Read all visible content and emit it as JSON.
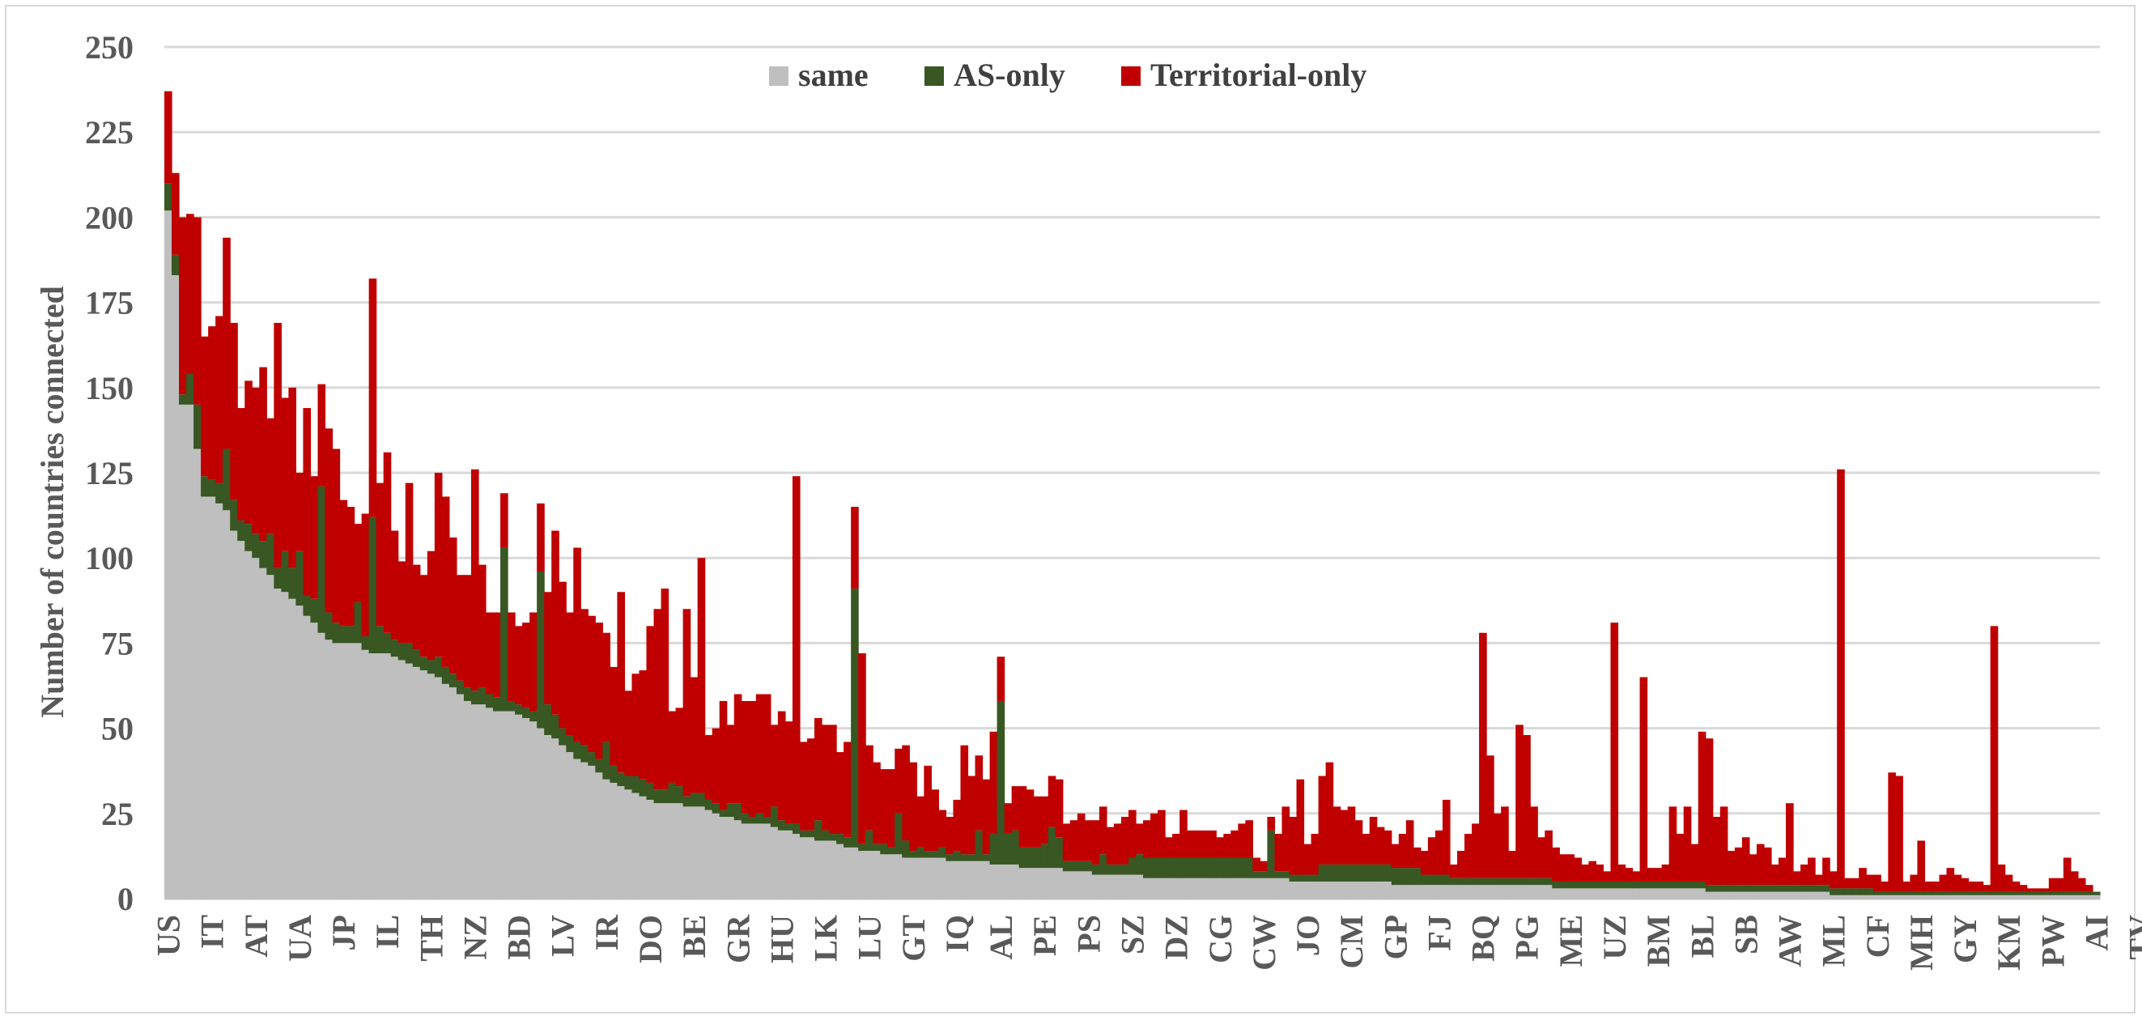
{
  "chart_data": {
    "type": "bar",
    "stacked": true,
    "title": "",
    "xlabel": "",
    "ylabel": "Number of countries connected",
    "ylim": [
      0,
      250
    ],
    "yticks": [
      0,
      25,
      50,
      75,
      100,
      125,
      150,
      175,
      200,
      225,
      250
    ],
    "grid": true,
    "legend_position": "top-center",
    "x_tick_labels": [
      "US",
      "IT",
      "AT",
      "UA",
      "JP",
      "IL",
      "TH",
      "NZ",
      "BD",
      "LV",
      "IR",
      "DO",
      "BE",
      "GR",
      "HU",
      "LK",
      "LU",
      "GT",
      "IQ",
      "AL",
      "PE",
      "PS",
      "SZ",
      "DZ",
      "CG",
      "CW",
      "JO",
      "CM",
      "GP",
      "FJ",
      "BQ",
      "PG",
      "ME",
      "UZ",
      "BM",
      "BL",
      "SB",
      "AW",
      "ML",
      "CF",
      "MH",
      "GY",
      "KM",
      "PW",
      "AI",
      "TV"
    ],
    "series": [
      {
        "name": "same",
        "color": "#bfbfbf",
        "values": [
          202,
          183,
          145,
          145,
          132,
          118,
          118,
          116,
          114,
          108,
          105,
          102,
          100,
          97,
          95,
          91,
          90,
          88,
          86,
          83,
          81,
          78,
          76,
          75,
          75,
          75,
          75,
          73,
          72,
          72,
          72,
          71,
          70,
          69,
          68,
          67,
          66,
          65,
          63,
          62,
          60,
          58,
          57,
          57,
          56,
          55,
          55,
          55,
          54,
          53,
          52,
          50,
          48,
          47,
          45,
          43,
          41,
          40,
          39,
          37,
          35,
          34,
          33,
          32,
          31,
          30,
          29,
          28,
          28,
          28,
          28,
          27,
          27,
          27,
          26,
          25,
          24,
          24,
          23,
          22,
          22,
          22,
          22,
          21,
          20,
          20,
          19,
          18,
          18,
          17,
          17,
          17,
          16,
          15,
          15,
          14,
          14,
          14,
          13,
          13,
          13,
          12,
          12,
          12,
          12,
          12,
          12,
          11,
          11,
          11,
          11,
          11,
          11,
          10,
          10,
          10,
          10,
          9,
          9,
          9,
          9,
          9,
          9,
          8,
          8,
          8,
          8,
          7,
          7,
          7,
          7,
          7,
          7,
          7,
          6,
          6,
          6,
          6,
          6,
          6,
          6,
          6,
          6,
          6,
          6,
          6,
          6,
          6,
          6,
          6,
          6,
          6,
          6,
          6,
          5,
          5,
          5,
          5,
          5,
          5,
          5,
          5,
          5,
          5,
          5,
          5,
          5,
          5,
          4,
          4,
          4,
          4,
          4,
          4,
          4,
          4,
          4,
          4,
          4,
          4,
          4,
          4,
          4,
          4,
          4,
          4,
          4,
          4,
          4,
          4,
          3,
          3,
          3,
          3,
          3,
          3,
          3,
          3,
          3,
          3,
          3,
          3,
          3,
          3,
          3,
          3,
          3,
          3,
          3,
          3,
          3,
          2,
          2,
          2,
          2,
          2,
          2,
          2,
          2,
          2,
          2,
          2,
          2,
          2,
          2,
          2,
          2,
          2,
          1,
          1,
          1,
          1,
          1,
          1,
          1,
          1,
          1,
          1,
          1,
          1,
          1,
          1,
          1,
          1,
          1,
          1,
          1,
          1,
          1,
          1,
          1,
          1,
          1,
          1,
          1,
          1,
          1,
          1,
          1,
          1,
          1,
          1,
          1,
          1,
          1
        ]
      },
      {
        "name": "AS-only",
        "color": "#385723",
        "values": [
          8,
          6,
          3,
          9,
          13,
          6,
          5,
          6,
          18,
          9,
          6,
          8,
          7,
          8,
          12,
          6,
          12,
          9,
          16,
          6,
          7,
          43,
          8,
          6,
          5,
          5,
          12,
          4,
          40,
          8,
          6,
          5,
          5,
          6,
          5,
          4,
          4,
          6,
          5,
          4,
          4,
          4,
          4,
          5,
          4,
          4,
          48,
          3,
          3,
          3,
          3,
          46,
          9,
          7,
          5,
          5,
          5,
          5,
          4,
          4,
          11,
          5,
          4,
          4,
          5,
          5,
          5,
          4,
          4,
          6,
          5,
          3,
          4,
          4,
          3,
          3,
          2,
          4,
          5,
          3,
          2,
          3,
          2,
          6,
          3,
          2,
          3,
          2,
          2,
          6,
          3,
          2,
          3,
          3,
          76,
          2,
          6,
          2,
          3,
          2,
          12,
          5,
          2,
          3,
          2,
          2,
          3,
          2,
          3,
          2,
          2,
          9,
          2,
          9,
          48,
          9,
          10,
          6,
          6,
          6,
          7,
          12,
          9,
          3,
          3,
          3,
          3,
          3,
          6,
          3,
          3,
          3,
          5,
          6,
          6,
          6,
          6,
          6,
          6,
          6,
          6,
          6,
          6,
          6,
          6,
          6,
          6,
          6,
          6,
          2,
          2,
          14,
          2,
          2,
          2,
          2,
          2,
          2,
          5,
          5,
          5,
          5,
          5,
          5,
          5,
          5,
          5,
          5,
          5,
          5,
          5,
          5,
          3,
          3,
          3,
          3,
          2,
          2,
          2,
          2,
          2,
          2,
          2,
          2,
          2,
          2,
          2,
          2,
          2,
          2,
          2,
          2,
          2,
          2,
          2,
          2,
          2,
          2,
          2,
          2,
          2,
          2,
          2,
          2,
          2,
          2,
          2,
          2,
          2,
          2,
          2,
          2,
          2,
          2,
          2,
          2,
          2,
          2,
          2,
          2,
          2,
          2,
          2,
          2,
          2,
          2,
          2,
          2,
          2,
          2,
          2,
          2,
          2,
          2,
          1,
          1,
          1,
          1,
          1,
          1,
          1,
          1,
          1,
          1,
          1,
          1,
          1,
          1,
          1,
          1,
          1,
          1,
          1,
          1,
          1,
          1,
          1,
          1,
          1,
          1,
          1,
          1,
          1,
          1,
          1,
          1,
          1
        ]
      },
      {
        "name": "Territorial-only",
        "color": "#c00000",
        "values": [
          27,
          24,
          52,
          47,
          55,
          41,
          45,
          49,
          62,
          52,
          33,
          42,
          43,
          51,
          34,
          72,
          45,
          53,
          23,
          55,
          36,
          30,
          54,
          51,
          37,
          35,
          23,
          36,
          70,
          42,
          53,
          32,
          24,
          47,
          25,
          24,
          32,
          54,
          50,
          40,
          31,
          33,
          65,
          36,
          24,
          25,
          16,
          26,
          23,
          25,
          29,
          20,
          33,
          54,
          43,
          36,
          57,
          40,
          40,
          40,
          32,
          29,
          53,
          25,
          30,
          32,
          46,
          53,
          59,
          21,
          23,
          55,
          34,
          69,
          19,
          22,
          32,
          23,
          32,
          33,
          34,
          35,
          36,
          24,
          32,
          30,
          102,
          26,
          27,
          30,
          31,
          32,
          24,
          28,
          24,
          56,
          25,
          24,
          22,
          23,
          19,
          28,
          26,
          15,
          25,
          18,
          11,
          11,
          15,
          32,
          23,
          22,
          22,
          30,
          13,
          9,
          13,
          18,
          17,
          15,
          14,
          15,
          17,
          11,
          12,
          14,
          12,
          13,
          14,
          11,
          12,
          14,
          14,
          9,
          11,
          13,
          14,
          6,
          7,
          14,
          8,
          8,
          8,
          8,
          6,
          7,
          8,
          10,
          11,
          4,
          3,
          4,
          11,
          19,
          17,
          28,
          9,
          12,
          26,
          30,
          17,
          16,
          17,
          13,
          9,
          14,
          11,
          10,
          7,
          10,
          14,
          6,
          7,
          11,
          13,
          22,
          4,
          8,
          13,
          16,
          72,
          36,
          19,
          21,
          8,
          45,
          42,
          21,
          12,
          14,
          10,
          8,
          8,
          7,
          5,
          6,
          5,
          3,
          76,
          5,
          4,
          3,
          60,
          4,
          4,
          5,
          22,
          14,
          22,
          11,
          44,
          43,
          20,
          23,
          10,
          11,
          14,
          9,
          12,
          11,
          6,
          8,
          24,
          4,
          6,
          8,
          3,
          8,
          5,
          123,
          3,
          3,
          6,
          4,
          5,
          3,
          35,
          34,
          3,
          5,
          15,
          3,
          3,
          5,
          7,
          5,
          4,
          3,
          3,
          2,
          78,
          8,
          5,
          3,
          2,
          1,
          1,
          1,
          4,
          4,
          10,
          6,
          4,
          2
        ]
      }
    ]
  }
}
